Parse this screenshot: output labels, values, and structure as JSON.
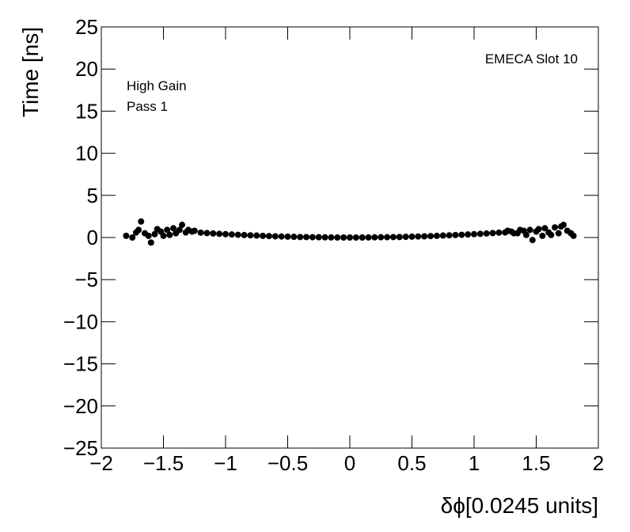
{
  "chart_data": {
    "type": "scatter",
    "annotations": [
      "EMECA Slot 10",
      "High Gain",
      "Pass 1"
    ],
    "x_label": "δϕ[0.0245 units]",
    "y_label": "Time [ns]",
    "xlim": [
      -2,
      2
    ],
    "ylim": [
      -25,
      25
    ],
    "xticks": [
      {
        "value": -2,
        "label": "−2"
      },
      {
        "value": -1.5,
        "label": "−1.5"
      },
      {
        "value": -1,
        "label": "−1"
      },
      {
        "value": -0.5,
        "label": "−0.5"
      },
      0,
      0.5,
      1,
      1.5,
      2
    ],
    "yticks": [
      {
        "value": -25,
        "label": "−25"
      },
      {
        "value": -20,
        "label": "−20"
      },
      {
        "value": -15,
        "label": "−15"
      },
      {
        "value": -10,
        "label": "−10"
      },
      {
        "value": -5,
        "label": "−5"
      },
      0,
      5,
      10,
      15,
      20,
      25
    ],
    "color": "#000000",
    "x": [
      -1.8,
      -1.75,
      -1.72,
      -1.7,
      -1.68,
      -1.65,
      -1.62,
      -1.6,
      -1.57,
      -1.55,
      -1.52,
      -1.5,
      -1.47,
      -1.45,
      -1.42,
      -1.4,
      -1.37,
      -1.35,
      -1.32,
      -1.3,
      -1.27,
      -1.25,
      -1.2,
      -1.15,
      -1.1,
      -1.05,
      -1.0,
      -0.95,
      -0.9,
      -0.85,
      -0.8,
      -0.75,
      -0.7,
      -0.65,
      -0.6,
      -0.55,
      -0.5,
      -0.45,
      -0.4,
      -0.35,
      -0.3,
      -0.25,
      -0.2,
      -0.15,
      -0.1,
      -0.05,
      0,
      0.05,
      0.1,
      0.15,
      0.2,
      0.25,
      0.3,
      0.35,
      0.4,
      0.45,
      0.5,
      0.55,
      0.6,
      0.65,
      0.7,
      0.75,
      0.8,
      0.85,
      0.9,
      0.95,
      1.0,
      1.05,
      1.1,
      1.15,
      1.2,
      1.25,
      1.27,
      1.3,
      1.32,
      1.35,
      1.37,
      1.4,
      1.42,
      1.45,
      1.47,
      1.5,
      1.52,
      1.55,
      1.57,
      1.6,
      1.62,
      1.65,
      1.68,
      1.7,
      1.72,
      1.75,
      1.78,
      1.8
    ],
    "values": [
      0.2,
      0,
      0.6,
      0.9,
      1.9,
      0.5,
      0.2,
      -0.6,
      0.4,
      1.0,
      0.7,
      0.2,
      0.9,
      0.3,
      1.1,
      0.5,
      0.9,
      1.5,
      0.6,
      0.9,
      0.7,
      0.8,
      0.58,
      0.53,
      0.48,
      0.44,
      0.4,
      0.36,
      0.32,
      0.29,
      0.26,
      0.23,
      0.2,
      0.17,
      0.14,
      0.12,
      0.1,
      0.08,
      0.06,
      0.05,
      0.04,
      0.03,
      0.02,
      0.01,
      0,
      0,
      0,
      0,
      0,
      0.01,
      0.02,
      0.03,
      0.04,
      0.05,
      0.06,
      0.08,
      0.1,
      0.12,
      0.14,
      0.17,
      0.2,
      0.23,
      0.26,
      0.29,
      0.32,
      0.36,
      0.4,
      0.44,
      0.48,
      0.53,
      0.58,
      0.6,
      0.8,
      0.7,
      0.5,
      0.5,
      0.9,
      0.8,
      0.3,
      0.9,
      -0.3,
      0.7,
      1.0,
      0.2,
      1.1,
      0.6,
      0.3,
      1.2,
      0.5,
      1.3,
      1.5,
      0.8,
      0.5,
      0.2
    ]
  }
}
